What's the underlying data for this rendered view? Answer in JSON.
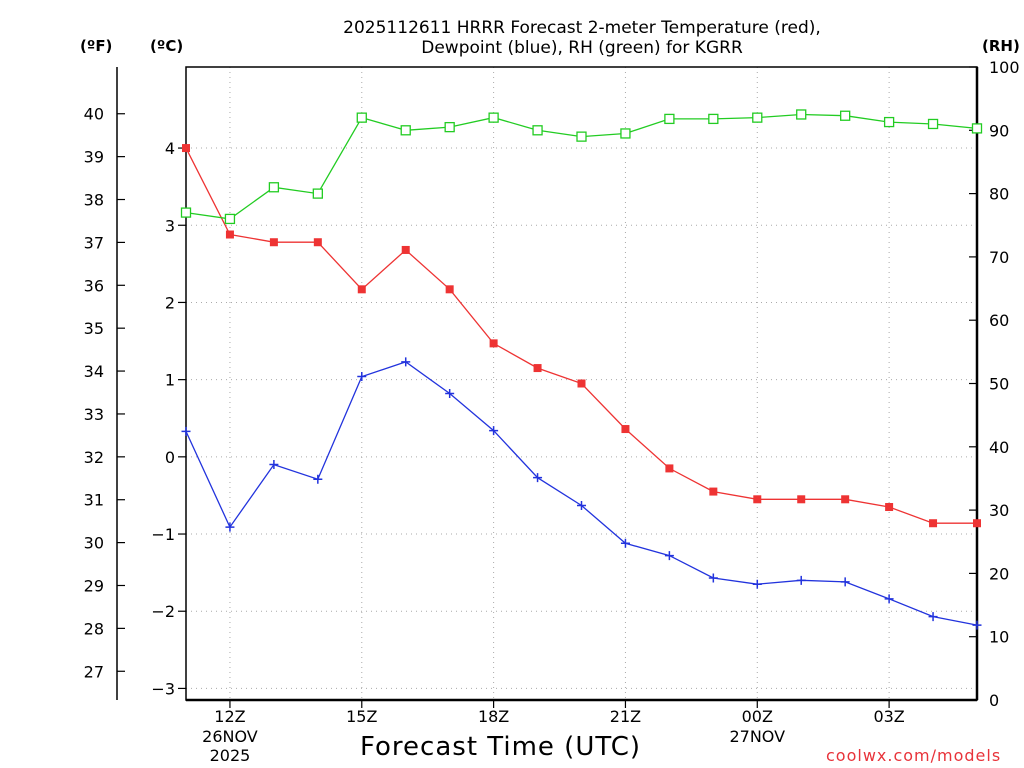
{
  "title_line1": "2025112611 HRRR Forecast 2-meter Temperature (red),",
  "title_line2": "Dewpoint (blue), RH (green) for KGRR",
  "unit_f": "(ºF)",
  "unit_c": "(ºC)",
  "unit_rh": "(RH)",
  "xlabel": "Forecast Time (UTC)",
  "credit": "coolwx.com/models",
  "colors": {
    "temperature": "#ee3333",
    "dewpoint": "#2233dd",
    "rh": "#22cc22"
  },
  "chart_data": {
    "type": "line",
    "x": [
      11,
      12,
      13,
      14,
      15,
      16,
      17,
      18,
      19,
      20,
      21,
      22,
      23,
      24,
      25,
      26,
      27,
      28,
      29
    ],
    "x_unit": "hours UTC from 2025-11-26 00Z",
    "x_ticks": [
      {
        "x": 12,
        "label": "12Z",
        "sub": [
          "26NOV",
          "2025"
        ]
      },
      {
        "x": 15,
        "label": "15Z",
        "sub": []
      },
      {
        "x": 18,
        "label": "18Z",
        "sub": []
      },
      {
        "x": 21,
        "label": "21Z",
        "sub": []
      },
      {
        "x": 24,
        "label": "00Z",
        "sub": [
          "27NOV"
        ]
      },
      {
        "x": 27,
        "label": "03Z",
        "sub": []
      }
    ],
    "xlim": [
      11,
      29
    ],
    "ylim_c": [
      -3.15,
      5.05
    ],
    "y_ticks_c": [
      -3,
      -2,
      -1,
      0,
      1,
      2,
      3,
      4
    ],
    "y_ticks_f": [
      27,
      28,
      29,
      30,
      31,
      32,
      33,
      34,
      35,
      36,
      37,
      38,
      39,
      40
    ],
    "ylim_rh": [
      0,
      100
    ],
    "y_ticks_rh": [
      0,
      10,
      20,
      30,
      40,
      50,
      60,
      70,
      80,
      90,
      100
    ],
    "series": [
      {
        "name": "Temperature (red)",
        "axis": "C",
        "marker": "filled-square",
        "values": [
          4.0,
          2.88,
          2.78,
          2.78,
          2.17,
          2.68,
          2.17,
          1.47,
          1.15,
          0.95,
          0.36,
          -0.15,
          -0.45,
          -0.55,
          -0.55,
          -0.55,
          -0.65,
          -0.86,
          -0.86
        ]
      },
      {
        "name": "Dewpoint (blue)",
        "axis": "C",
        "marker": "plus",
        "values": [
          0.33,
          -0.91,
          -0.1,
          -0.29,
          1.04,
          1.23,
          0.82,
          0.34,
          -0.27,
          -0.63,
          -1.12,
          -1.28,
          -1.57,
          -1.65,
          -1.6,
          -1.62,
          -1.84,
          -2.07,
          -2.18
        ]
      },
      {
        "name": "RH (green)",
        "axis": "RH",
        "marker": "open-square",
        "values": [
          77,
          76,
          81,
          80,
          92,
          90,
          90.5,
          92,
          90,
          89,
          89.5,
          91.8,
          91.8,
          92,
          92.5,
          92.3,
          91.3,
          91,
          90.3
        ]
      }
    ]
  }
}
